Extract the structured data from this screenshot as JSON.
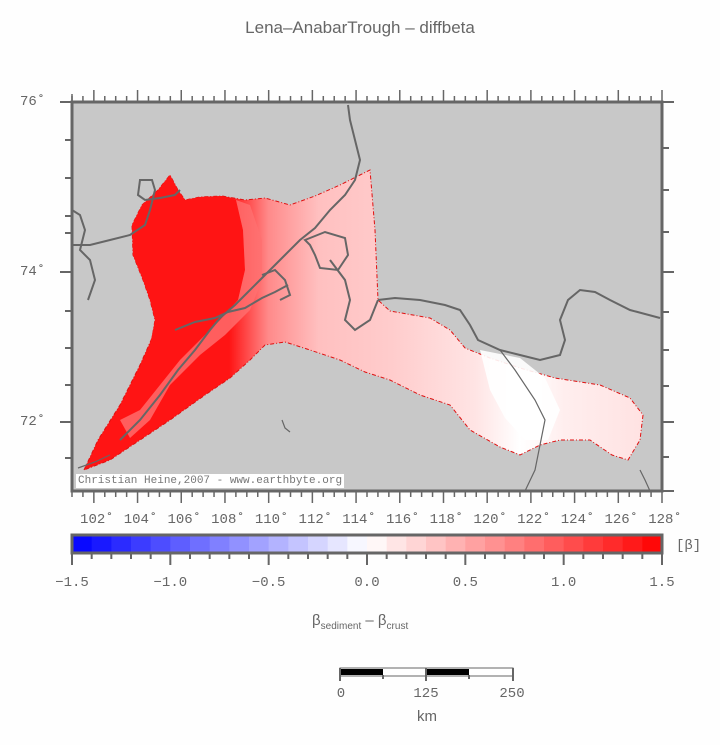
{
  "title": "Lena–AnabarTrough – diffbeta",
  "map": {
    "background_color": "#c8c8c8",
    "frame_color": "#666666",
    "coastline_color": "#666666",
    "basin_outline_color": "#e01010",
    "credit": "Christian Heine,2007 - www.earthbyte.org",
    "lat_labels": [
      {
        "label": "76˚",
        "value": 76
      },
      {
        "label": "74˚",
        "value": 74
      },
      {
        "label": "72˚",
        "value": 72
      }
    ],
    "lon_labels": [
      {
        "label": "102˚",
        "value": 102
      },
      {
        "label": "104˚",
        "value": 104
      },
      {
        "label": "106˚",
        "value": 106
      },
      {
        "label": "108˚",
        "value": 108
      },
      {
        "label": "110˚",
        "value": 110
      },
      {
        "label": "112˚",
        "value": 112
      },
      {
        "label": "114˚",
        "value": 114
      },
      {
        "label": "116˚",
        "value": 116
      },
      {
        "label": "118˚",
        "value": 118
      },
      {
        "label": "120˚",
        "value": 120
      },
      {
        "label": "122˚",
        "value": 122
      },
      {
        "label": "124˚",
        "value": 124
      },
      {
        "label": "126˚",
        "value": 126
      },
      {
        "label": "128˚",
        "value": 128
      }
    ]
  },
  "colorbar": {
    "unit": "[β]",
    "min": -1.5,
    "max": 1.5,
    "step": 0.1,
    "tick_labels": [
      "−1.5",
      "−1.0",
      "−0.5",
      "0.0",
      "0.5",
      "1.0",
      "1.5"
    ],
    "low_color": "#0000ff",
    "mid_color": "#ffffff",
    "high_color": "#ff0000"
  },
  "variable": {
    "beta": "β",
    "sub1": "sediment",
    "minus": " – ",
    "sub2": "crust"
  },
  "scalebar": {
    "labels": [
      "0",
      "125",
      "250"
    ],
    "unit": "km"
  }
}
